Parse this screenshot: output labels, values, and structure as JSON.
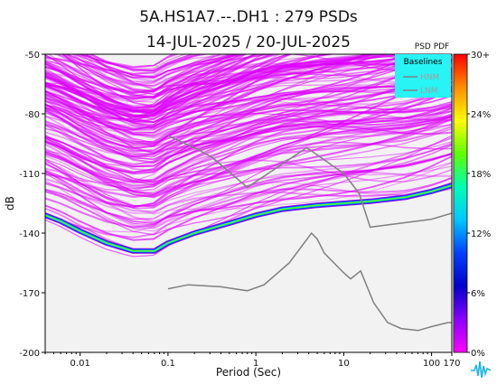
{
  "colors": {
    "plot_background": "#f2f2f2",
    "psd_magenta": "#dd00ff",
    "baseline_line": "#808080",
    "legend_background": "#28f3f5"
  },
  "logo_icon": "waveform-logo-icon",
  "chart_data": {
    "type": "heatmap",
    "title": "5A.HS1A7.--.DH1 : 279 PSDs",
    "subtitle": "14-JUL-2025 / 20-JUL-2025",
    "xlabel": "Period (Sec)",
    "ylabel": "dB",
    "x_scale": "log",
    "xlim": [
      0.004,
      170
    ],
    "ylim": [
      -200,
      -50
    ],
    "x_ticks": [
      {
        "value": 0.01,
        "label": "0.01"
      },
      {
        "value": 0.1,
        "label": "0.1"
      },
      {
        "value": 1,
        "label": "1"
      },
      {
        "value": 10,
        "label": "10"
      },
      {
        "value": 100,
        "label": "100"
      },
      {
        "value": 170,
        "label": "170"
      }
    ],
    "y_ticks": [
      {
        "value": -50,
        "label": "-50"
      },
      {
        "value": -80,
        "label": "-80"
      },
      {
        "value": -110,
        "label": "-110"
      },
      {
        "value": -140,
        "label": "-140"
      },
      {
        "value": -170,
        "label": "-170"
      },
      {
        "value": -200,
        "label": "-200"
      }
    ],
    "grid": false,
    "legend": {
      "title": "Baselines",
      "entries": [
        "HNM",
        "LNM"
      ],
      "placement": "top-right"
    },
    "colorbar": {
      "title": "PSD PDF",
      "ticks": [
        "30+",
        "24%",
        "18%",
        "12%",
        "6%",
        "0%"
      ],
      "stops": [
        "#ff0000",
        "#ff8c00",
        "#ffff00",
        "#5fff00",
        "#00ffb4",
        "#00c8ff",
        "#0040ff",
        "#0000c8",
        "#8a00ff",
        "#ff00ff"
      ]
    },
    "series": [
      {
        "name": "HNM",
        "x": [
          0.1,
          0.22,
          0.32,
          0.8,
          3.8,
          10,
          15,
          20,
          100,
          170
        ],
        "y": [
          -91,
          -98,
          -102,
          -117,
          -97,
          -110,
          -120,
          -137,
          -133,
          -130
        ]
      },
      {
        "name": "LNM",
        "x": [
          0.1,
          0.17,
          0.4,
          0.8,
          1.24,
          2.4,
          4.3,
          5,
          6,
          10,
          12,
          15.6,
          21.9,
          31.6,
          45,
          70,
          101,
          154,
          170
        ],
        "y": [
          -168,
          -166,
          -167,
          -169,
          -166,
          -155,
          -140,
          -143,
          -150,
          -160,
          -163,
          -159,
          -175,
          -185,
          -188,
          -189,
          -187,
          -185,
          -185
        ]
      },
      {
        "name": "PDF mode",
        "x": [
          0.004,
          0.006,
          0.01,
          0.02,
          0.04,
          0.07,
          0.1,
          0.2,
          0.5,
          1,
          2,
          5,
          10,
          20,
          50,
          100,
          170
        ],
        "y": [
          -131,
          -134,
          -139,
          -145,
          -149,
          -149,
          -145,
          -140,
          -135,
          -131,
          -128,
          -126,
          -125,
          -124,
          -122,
          -119,
          -116
        ]
      }
    ]
  }
}
